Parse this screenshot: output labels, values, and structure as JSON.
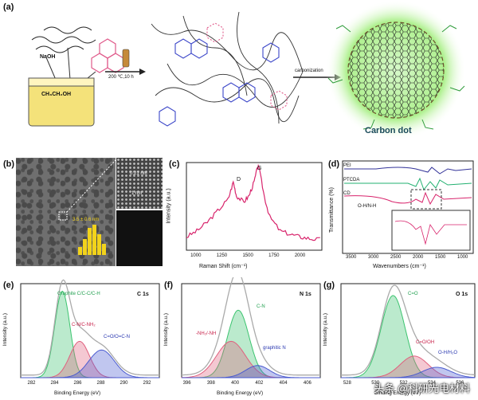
{
  "panels": {
    "a": {
      "label": "(a)",
      "reagent": "NaOH",
      "solvent": "CH₃CH₂OH",
      "condition": "200 ℃,10 h",
      "step2": "carbonization",
      "product": "Carbon dot"
    },
    "b": {
      "label": "(b)",
      "lattice": "0.21 nm",
      "scalebar": "1 nm",
      "size_dist": "3.5 ± 0.6 nm"
    },
    "c": {
      "label": "(c)",
      "ylabel": "Intensity (a.u.)",
      "xlabel": "Raman Shift (cm⁻¹)",
      "peak_d": "D",
      "peak_g": "G",
      "xticks": [
        "1000",
        "1250",
        "1500",
        "1750",
        "2000"
      ]
    },
    "d": {
      "label": "(d)",
      "ylabel": "Transmittance (%)",
      "xlabel": "Wavenumbers (cm⁻¹)",
      "legend": [
        "PEI",
        "PTCDA",
        "CD"
      ],
      "annotation": "O-H/N-H",
      "xticks": [
        "3500",
        "3000",
        "2500",
        "2000",
        "1500",
        "1000"
      ]
    },
    "e": {
      "label": "(e)",
      "title": "C 1s",
      "xlabel": "Binding Energy (eV)",
      "ylabel": "Intensity (a.u.)",
      "peaks": [
        "Graphite C/C-C/C-H",
        "C-N/C-NH₂",
        "C=O/O=C-N"
      ],
      "xticks": [
        "282",
        "284",
        "286",
        "288",
        "290",
        "292"
      ]
    },
    "f": {
      "label": "(f)",
      "title": "N 1s",
      "xlabel": "Binding Energy (eV)",
      "ylabel": "Intensity (a.u.)",
      "peaks": [
        "C-N",
        "-NH₂/-NH",
        "graphitic N"
      ],
      "xticks": [
        "396",
        "398",
        "400",
        "402",
        "404",
        "406"
      ]
    },
    "g": {
      "label": "(g)",
      "title": "O 1s",
      "xlabel": "Binding Energy (eV)",
      "ylabel": "Intensity (a.u.)",
      "peaks": [
        "C=O",
        "C=O/OH",
        "O-H/H₂O"
      ],
      "xticks": [
        "528",
        "530",
        "532",
        "534",
        "536"
      ]
    }
  },
  "watermark": "头条 @科研光电材料",
  "chart_data": [
    {
      "panel": "c",
      "type": "line",
      "xlabel": "Raman Shift (cm⁻¹)",
      "ylabel": "Intensity (a.u.)",
      "xlim": [
        900,
        2200
      ],
      "x": [
        900,
        1000,
        1100,
        1200,
        1300,
        1350,
        1380,
        1450,
        1500,
        1550,
        1590,
        1650,
        1700,
        1800,
        1900,
        2000,
        2100,
        2200
      ],
      "y": [
        0.15,
        0.22,
        0.32,
        0.45,
        0.58,
        0.78,
        0.62,
        0.55,
        0.62,
        0.78,
        0.98,
        0.6,
        0.38,
        0.22,
        0.18,
        0.15,
        0.13,
        0.12
      ]
    },
    {
      "panel": "e",
      "type": "area",
      "title": "C 1s",
      "xlim": [
        281,
        293
      ],
      "series": [
        {
          "name": "Graphite C/C-C/C-H",
          "center": 284.6,
          "height": 1.0,
          "width": 0.65,
          "color": "#3cc46f"
        },
        {
          "name": "C-N/C-NH₂",
          "center": 286.1,
          "height": 0.42,
          "width": 0.85,
          "color": "#e0607e"
        },
        {
          "name": "C=O/O=C-N",
          "center": 288.0,
          "height": 0.32,
          "width": 1.1,
          "color": "#4a5bd0"
        }
      ]
    },
    {
      "panel": "f",
      "type": "area",
      "title": "N 1s",
      "xlim": [
        395.5,
        407
      ],
      "series": [
        {
          "name": "C-N",
          "center": 400.2,
          "height": 0.78,
          "width": 0.9,
          "color": "#3cc46f"
        },
        {
          "name": "-NH₂/-NH",
          "center": 399.6,
          "height": 0.42,
          "width": 1.2,
          "color": "#e0607e"
        },
        {
          "name": "graphitic N",
          "center": 401.8,
          "height": 0.14,
          "width": 1.0,
          "color": "#4a5bd0"
        }
      ]
    },
    {
      "panel": "g",
      "type": "area",
      "title": "O 1s",
      "xlim": [
        527.5,
        537
      ],
      "series": [
        {
          "name": "C=O",
          "center": 531.2,
          "height": 0.95,
          "width": 0.85,
          "color": "#3cc46f"
        },
        {
          "name": "C=O/OH",
          "center": 532.7,
          "height": 0.25,
          "width": 1.0,
          "color": "#e0607e"
        },
        {
          "name": "O-H/H₂O",
          "center": 534.3,
          "height": 0.12,
          "width": 1.0,
          "color": "#4a5bd0"
        }
      ]
    }
  ]
}
